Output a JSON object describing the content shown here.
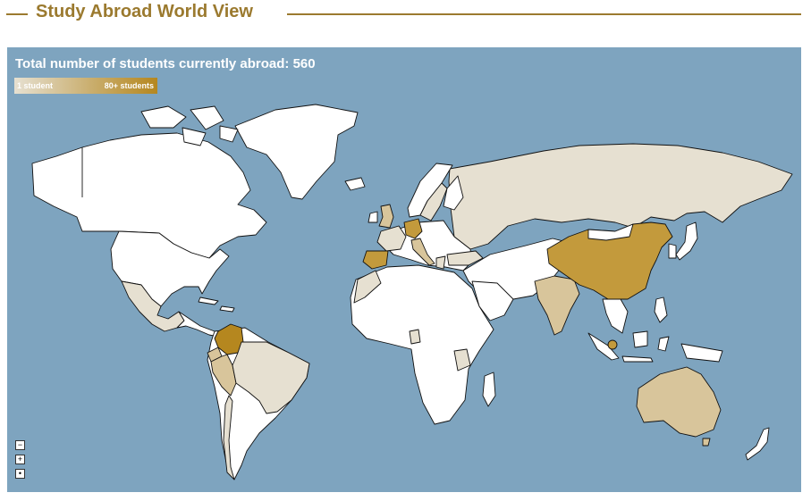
{
  "header": {
    "title": "Study Abroad World View"
  },
  "map": {
    "total_label": "Total number of students currently abroad: 560",
    "legend": {
      "min_label": "1 student",
      "max_label": "80+ students"
    },
    "zoom_controls": [
      {
        "label": "−",
        "action": "zoom-out"
      },
      {
        "label": "+",
        "action": "zoom-in"
      },
      {
        "label": "•",
        "action": "reset-view"
      }
    ],
    "colors": {
      "ocean": "#7ea4bf",
      "no_students": "#ffffff",
      "low": "#e6e0d1",
      "mid": "#d8c59b",
      "high": "#c39a3c",
      "max": "#b5871f",
      "border": "#111111",
      "heading": "#9b7a2f"
    },
    "highlighted_countries": [
      {
        "name": "Colombia",
        "level": "max"
      },
      {
        "name": "China",
        "level": "high"
      },
      {
        "name": "Spain",
        "level": "high"
      },
      {
        "name": "Germany",
        "level": "high"
      },
      {
        "name": "Singapore",
        "level": "high"
      },
      {
        "name": "United Kingdom",
        "level": "mid"
      },
      {
        "name": "Italy",
        "level": "mid"
      },
      {
        "name": "Australia",
        "level": "mid"
      },
      {
        "name": "India",
        "level": "mid"
      },
      {
        "name": "Peru",
        "level": "mid"
      },
      {
        "name": "Ecuador",
        "level": "mid"
      },
      {
        "name": "Russia",
        "level": "low"
      },
      {
        "name": "Brazil",
        "level": "low"
      },
      {
        "name": "France",
        "level": "low"
      },
      {
        "name": "Mexico",
        "level": "low"
      },
      {
        "name": "Sweden",
        "level": "low"
      },
      {
        "name": "Greece",
        "level": "low"
      },
      {
        "name": "Turkey",
        "level": "low"
      },
      {
        "name": "Morocco",
        "level": "low"
      },
      {
        "name": "Tanzania",
        "level": "low"
      },
      {
        "name": "Ghana",
        "level": "low"
      },
      {
        "name": "Chile",
        "level": "low"
      }
    ]
  }
}
